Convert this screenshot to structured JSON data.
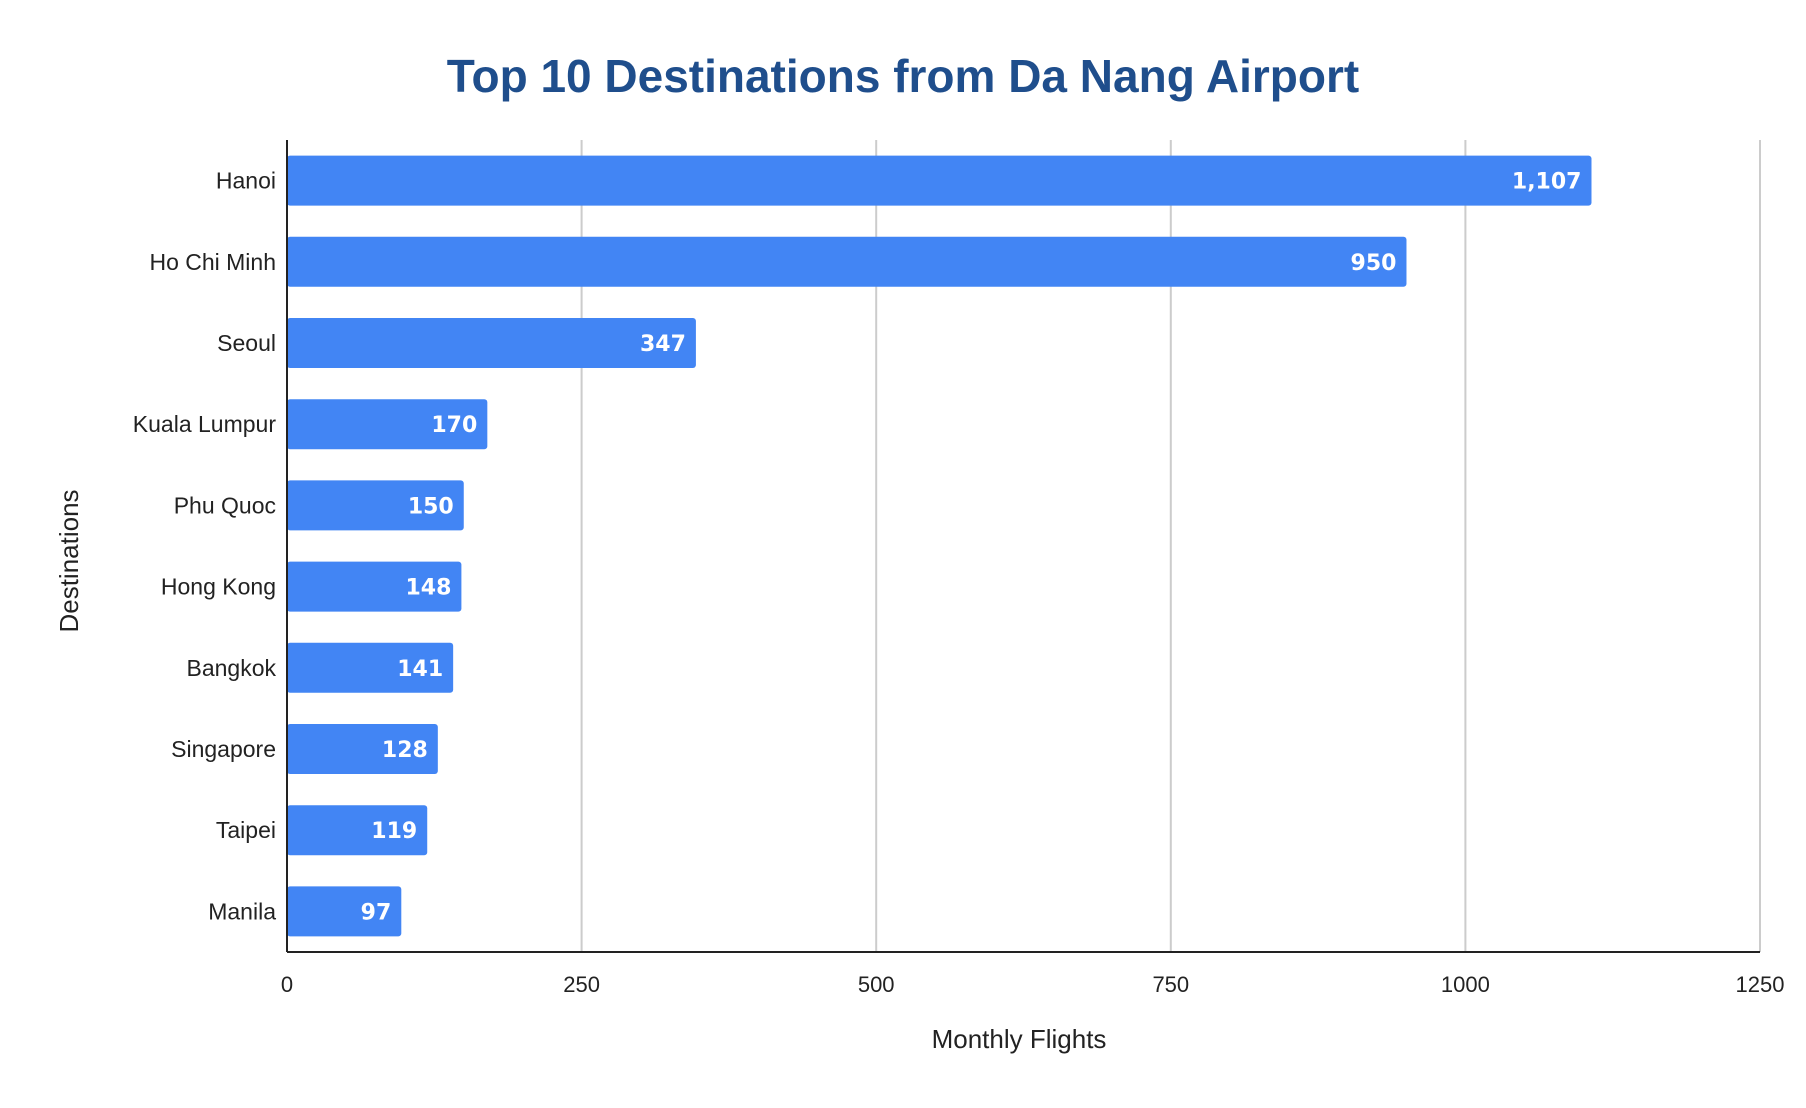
{
  "chart_data": {
    "type": "bar",
    "orientation": "horizontal",
    "title": "Top 10 Destinations from Da Nang Airport",
    "xlabel": "Monthly Flights",
    "ylabel": "Destinations",
    "categories": [
      "Hanoi",
      "Ho Chi Minh",
      "Seoul",
      "Kuala Lumpur",
      "Phu Quoc",
      "Hong Kong",
      "Bangkok",
      "Singapore",
      "Taipei",
      "Manila"
    ],
    "values": [
      1107,
      950,
      347,
      170,
      150,
      148,
      141,
      128,
      119,
      97
    ],
    "value_labels": [
      "1,107",
      "950",
      "347",
      "170",
      "150",
      "148",
      "141",
      "128",
      "119",
      "97"
    ],
    "xlim": [
      0,
      1250
    ],
    "xticks": [
      0,
      250,
      500,
      750,
      1000,
      1250
    ],
    "xtick_labels": [
      "0",
      "250",
      "500",
      "750",
      "1000",
      "1250"
    ],
    "grid": true,
    "legend": "none",
    "colors": {
      "bar": "#4285f4",
      "title": "#1f4e8c",
      "grid": "#cccccc",
      "axis": "#222222"
    }
  }
}
